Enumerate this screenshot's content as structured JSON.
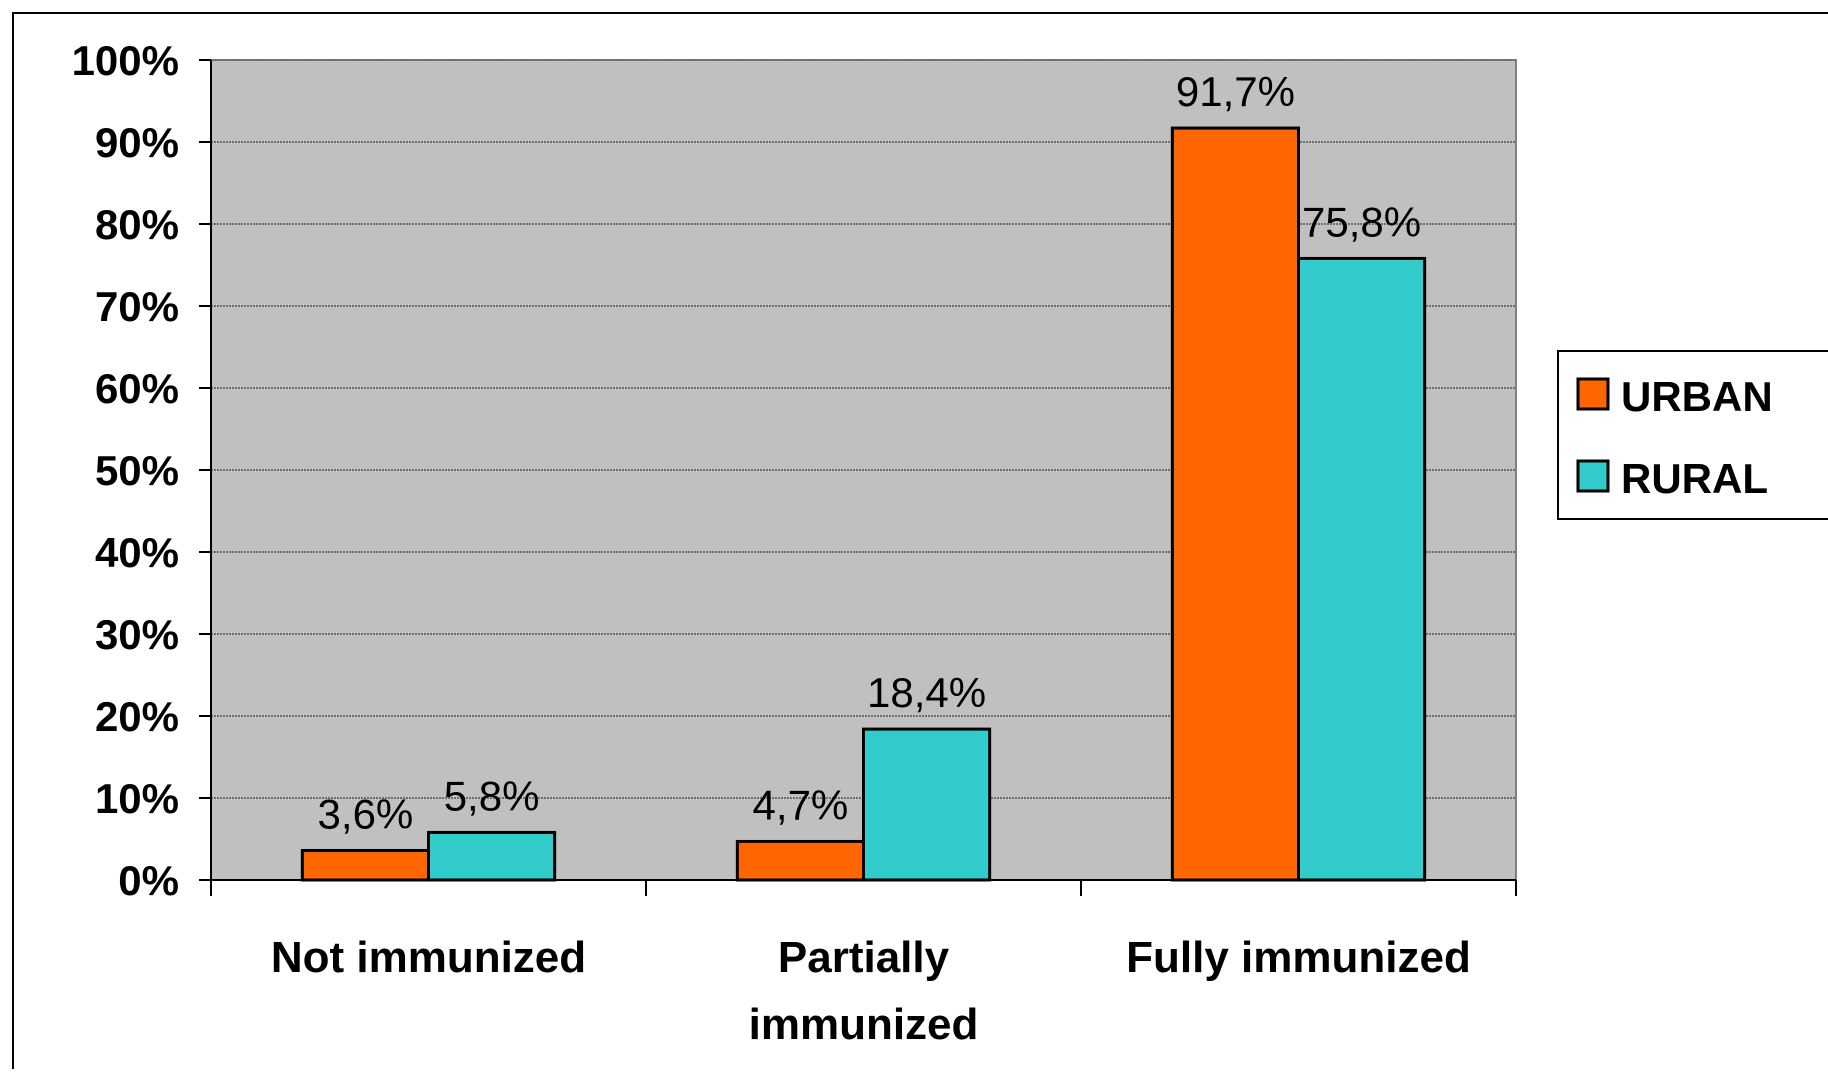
{
  "chart_data": {
    "type": "bar",
    "title": "",
    "xlabel": "",
    "ylabel": "",
    "categories": [
      [
        "Not immunized"
      ],
      [
        "Partially",
        "immunized"
      ],
      [
        "Fully immunized"
      ]
    ],
    "series": [
      {
        "name": "URBAN",
        "color": "#ff6600",
        "values": [
          3.6,
          4.7,
          91.7
        ],
        "labels": [
          "3,6%",
          "4,7%",
          "91,7%"
        ]
      },
      {
        "name": "RURAL",
        "color": "#33cccc",
        "values": [
          5.8,
          18.4,
          75.8
        ],
        "labels": [
          "5,8%",
          "18,4%",
          "75,8%"
        ]
      }
    ],
    "ylim": [
      0,
      100
    ],
    "yticks": [
      0,
      10,
      20,
      30,
      40,
      50,
      60,
      70,
      80,
      90,
      100
    ],
    "ytick_labels": [
      "0%",
      "10%",
      "20%",
      "30%",
      "40%",
      "50%",
      "60%",
      "70%",
      "80%",
      "90%",
      "100%"
    ],
    "grid": true,
    "legend_position": "right",
    "plot_background": "#c0c0c0"
  }
}
